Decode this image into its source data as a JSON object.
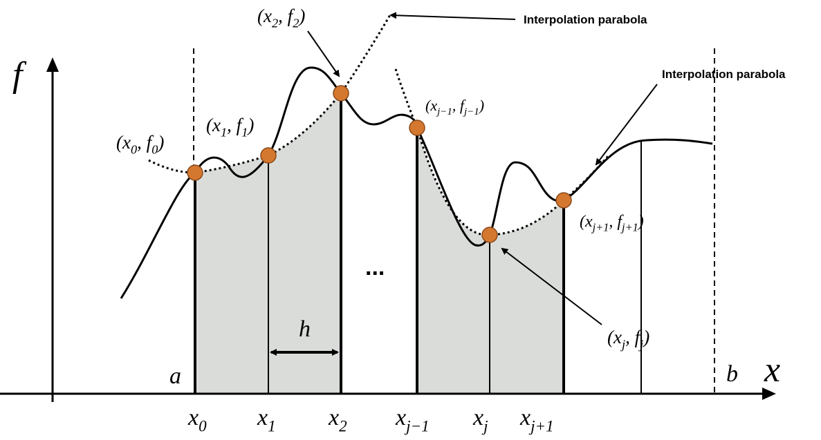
{
  "axes": {
    "y_label": "f",
    "x_label": "x",
    "a": "a",
    "b": "b"
  },
  "ticks": [
    [
      {
        "text": "x"
      },
      {
        "text": "0",
        "sub": true
      }
    ],
    [
      {
        "text": "x"
      },
      {
        "text": "1",
        "sub": true
      }
    ],
    [
      {
        "text": "x"
      },
      {
        "text": "2",
        "sub": true
      }
    ],
    [
      {
        "text": "x"
      },
      {
        "text": "j−1",
        "sub": true
      }
    ],
    [
      {
        "text": "x"
      },
      {
        "text": "j",
        "sub": true
      }
    ],
    [
      {
        "text": "x"
      },
      {
        "text": "j+1",
        "sub": true
      }
    ]
  ],
  "points": [
    [
      {
        "text": "(x"
      },
      {
        "text": "0",
        "sub": true
      },
      {
        "text": ", f"
      },
      {
        "text": "0",
        "sub": true
      },
      {
        "text": ")"
      }
    ],
    [
      {
        "text": "(x"
      },
      {
        "text": "1",
        "sub": true
      },
      {
        "text": ", f"
      },
      {
        "text": "1",
        "sub": true
      },
      {
        "text": ")"
      }
    ],
    [
      {
        "text": "(x"
      },
      {
        "text": "2",
        "sub": true
      },
      {
        "text": ", f"
      },
      {
        "text": "2",
        "sub": true
      },
      {
        "text": ")"
      }
    ],
    [
      {
        "text": "(x"
      },
      {
        "text": "j−1",
        "sub": true
      },
      {
        "text": ", f"
      },
      {
        "text": "j−1",
        "sub": true
      },
      {
        "text": ")"
      }
    ],
    [
      {
        "text": "(x"
      },
      {
        "text": "j",
        "sub": true
      },
      {
        "text": ", f"
      },
      {
        "text": "j",
        "sub": true
      },
      {
        "text": ")"
      }
    ],
    [
      {
        "text": "(x"
      },
      {
        "text": "j+1",
        "sub": true
      },
      {
        "text": ", f"
      },
      {
        "text": "j+1",
        "sub": true
      },
      {
        "text": ")"
      }
    ]
  ],
  "spacing_label": "h",
  "ellipsis": "...",
  "annotations": [
    "Interpolation parabola",
    "Interpolation parabola"
  ]
}
